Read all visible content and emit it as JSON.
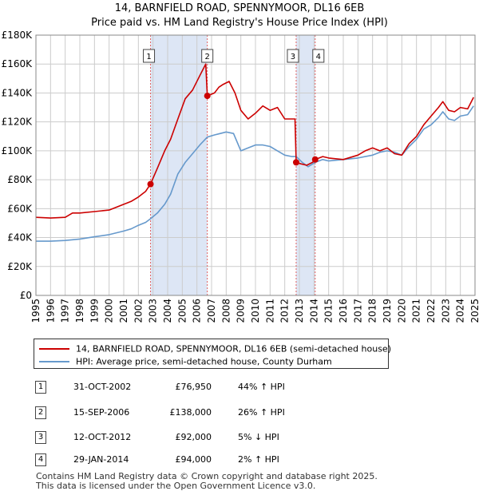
{
  "title": "14, BARNFIELD ROAD, SPENNYMOOR, DL16 6EB",
  "subtitle": "Price paid vs. HM Land Registry's House Price Index (HPI)",
  "colors": {
    "price": "#cc0000",
    "hpi": "#6699cc",
    "shade": "#dde6f5",
    "grid": "#cccccc",
    "vline": "#e06060"
  },
  "chart_data": {
    "type": "line",
    "xlim": [
      1995,
      2025
    ],
    "ylim": [
      0,
      180000
    ],
    "y_ticks": [
      0,
      20000,
      40000,
      60000,
      80000,
      100000,
      120000,
      140000,
      160000,
      180000
    ],
    "y_tick_labels": [
      "£0",
      "£20K",
      "£40K",
      "£60K",
      "£80K",
      "£100K",
      "£120K",
      "£140K",
      "£160K",
      "£180K"
    ],
    "x_ticks": [
      "1995",
      "1996",
      "1997",
      "1998",
      "1999",
      "2000",
      "2001",
      "2002",
      "2003",
      "2004",
      "2005",
      "2006",
      "2007",
      "2008",
      "2009",
      "2010",
      "2011",
      "2012",
      "2013",
      "2014",
      "2015",
      "2016",
      "2017",
      "2018",
      "2019",
      "2020",
      "2021",
      "2022",
      "2023",
      "2024",
      "2025"
    ],
    "shaded_ranges": [
      [
        2002.83,
        2006.71
      ],
      [
        2012.78,
        2014.08
      ]
    ],
    "series": [
      {
        "name": "14, BARNFIELD ROAD, SPENNYMOOR, DL16 6EB (semi-detached house)",
        "x": [
          1995,
          1996,
          1997,
          1997.5,
          1998,
          1999,
          2000,
          2001,
          2001.5,
          2002,
          2002.5,
          2002.83,
          2003.3,
          2003.8,
          2004.2,
          2004.7,
          2005.2,
          2005.7,
          2006.2,
          2006.6,
          2006.71,
          2007.2,
          2007.5,
          2007.8,
          2008.2,
          2008.6,
          2009.0,
          2009.5,
          2010.0,
          2010.5,
          2011.0,
          2011.5,
          2012.0,
          2012.5,
          2012.7,
          2012.78,
          2013.1,
          2013.5,
          2013.9,
          2014.08,
          2014.6,
          2015.0,
          2016.0,
          2017.0,
          2017.5,
          2018.0,
          2018.5,
          2019.0,
          2019.5,
          2020.0,
          2020.5,
          2021.0,
          2021.5,
          2022.0,
          2022.5,
          2022.8,
          2023.2,
          2023.6,
          2024.0,
          2024.5,
          2024.9
        ],
        "y": [
          54000,
          53500,
          54000,
          57000,
          57000,
          58000,
          59000,
          63000,
          65000,
          68000,
          72000,
          76950,
          88000,
          100000,
          108000,
          122000,
          136000,
          142000,
          152000,
          160000,
          138000,
          140000,
          144000,
          146000,
          148000,
          140000,
          128000,
          122000,
          126000,
          131000,
          128000,
          130000,
          122000,
          122000,
          122000,
          92000,
          91000,
          90000,
          92000,
          94000,
          96000,
          95000,
          94000,
          97000,
          100000,
          102000,
          100000,
          102000,
          98000,
          97000,
          105000,
          110000,
          118000,
          124000,
          130000,
          134000,
          128000,
          127000,
          130000,
          129000,
          137000
        ]
      },
      {
        "name": "HPI: Average price, semi-detached house, County Durham",
        "x": [
          1995,
          1996,
          1997,
          1998,
          1999,
          2000,
          2001,
          2001.5,
          2002,
          2002.5,
          2002.83,
          2003.3,
          2003.8,
          2004.2,
          2004.7,
          2005.2,
          2005.7,
          2006.2,
          2006.71,
          2007.2,
          2007.6,
          2008.0,
          2008.5,
          2009.0,
          2009.5,
          2010.0,
          2010.5,
          2011.0,
          2011.5,
          2012.0,
          2012.5,
          2012.78,
          2013.2,
          2013.6,
          2014.08,
          2014.6,
          2015.0,
          2016.0,
          2017.0,
          2018.0,
          2018.5,
          2019.0,
          2019.5,
          2020.0,
          2020.5,
          2021.0,
          2021.5,
          2022.0,
          2022.5,
          2022.8,
          2023.2,
          2023.6,
          2024.0,
          2024.5,
          2024.9
        ],
        "y": [
          37500,
          37500,
          38000,
          39000,
          40500,
          42000,
          44500,
          46000,
          48500,
          50500,
          53000,
          57000,
          63000,
          70000,
          84000,
          92000,
          98000,
          104000,
          109500,
          111000,
          112000,
          113000,
          112000,
          100000,
          102000,
          104000,
          104000,
          103000,
          100000,
          97000,
          96000,
          96000,
          92000,
          89000,
          92000,
          94000,
          93000,
          94000,
          95000,
          97000,
          99000,
          100000,
          99000,
          97000,
          103000,
          108000,
          115000,
          118000,
          123000,
          127000,
          122000,
          121000,
          124000,
          125000,
          131000
        ]
      }
    ],
    "sales": [
      {
        "label": "1",
        "x": 2002.83,
        "y": 76950
      },
      {
        "label": "2",
        "x": 2006.71,
        "y": 138000
      },
      {
        "label": "3",
        "x": 2012.78,
        "y": 92000
      },
      {
        "label": "4",
        "x": 2014.08,
        "y": 94000
      }
    ]
  },
  "legend": {
    "price_label": "14, BARNFIELD ROAD, SPENNYMOOR, DL16 6EB (semi-detached house)",
    "hpi_label": "HPI: Average price, semi-detached house, County Durham"
  },
  "transactions": [
    {
      "num": "1",
      "date": "31-OCT-2002",
      "price": "£76,950",
      "hpi": "44% ↑ HPI"
    },
    {
      "num": "2",
      "date": "15-SEP-2006",
      "price": "£138,000",
      "hpi": "26% ↑ HPI"
    },
    {
      "num": "3",
      "date": "12-OCT-2012",
      "price": "£92,000",
      "hpi": "5% ↓ HPI"
    },
    {
      "num": "4",
      "date": "29-JAN-2014",
      "price": "£94,000",
      "hpi": "2% ↑ HPI"
    }
  ],
  "footer": {
    "line1": "Contains HM Land Registry data © Crown copyright and database right 2025.",
    "line2": "This data is licensed under the Open Government Licence v3.0."
  }
}
